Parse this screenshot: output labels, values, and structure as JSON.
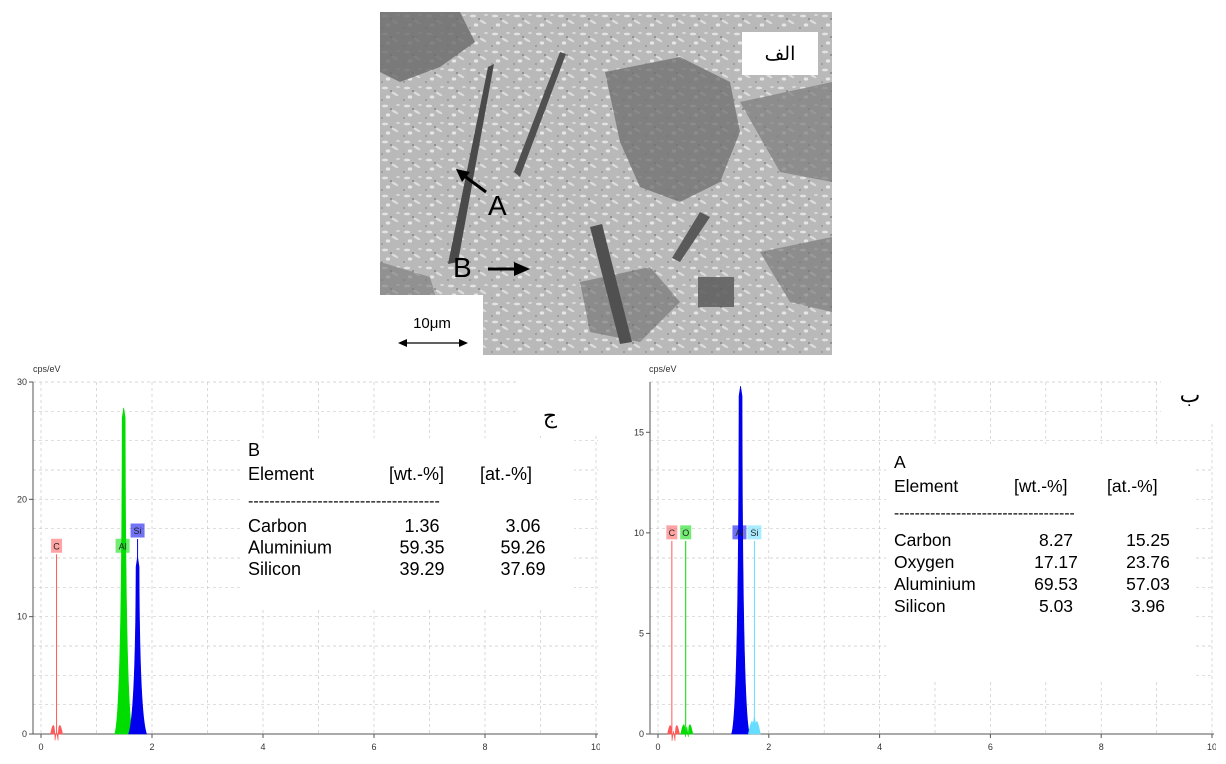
{
  "sem_image": {
    "panel_label": "الف",
    "arrow_a": "A",
    "arrow_b": "B",
    "scale_bar": "10μm"
  },
  "spectra": [
    {
      "panel_label": "ج",
      "y_unit": "cps/eV",
      "y_ticks": [
        "0",
        "10",
        "20",
        "30"
      ],
      "x_ticks": [
        "0",
        "2",
        "4",
        "6",
        "8",
        "10"
      ],
      "table_title": "B",
      "table_headers": [
        "Element",
        "[wt.-%]",
        "[at.-%]"
      ],
      "divider": "------------------------------------",
      "rows": [
        [
          "Carbon",
          "1.36",
          "3.06"
        ],
        [
          "Aluminium",
          "59.35",
          "59.26"
        ],
        [
          "Silicon",
          "39.29",
          "37.69"
        ]
      ],
      "peak_labels": [
        "C",
        "Al",
        "Si"
      ],
      "colors": {
        "C": "#ff5a5a",
        "Al": "#00dd00",
        "Si": "#0000ee"
      }
    },
    {
      "panel_label": "ب",
      "y_unit": "cps/eV",
      "y_ticks": [
        "0",
        "5",
        "10",
        "15"
      ],
      "x_ticks": [
        "0",
        "2",
        "4",
        "6",
        "8",
        "10"
      ],
      "table_title": "A",
      "table_headers": [
        "Element",
        "[wt.-%]",
        "[at.-%]"
      ],
      "divider": "-----------------------------------",
      "rows": [
        [
          "Carbon",
          "8.27",
          "15.25"
        ],
        [
          "Oxygen",
          "17.17",
          "23.76"
        ],
        [
          "Aluminium",
          "69.53",
          "57.03"
        ],
        [
          "Silicon",
          "5.03",
          "3.96"
        ]
      ],
      "peak_labels": [
        "C",
        "O",
        "Al",
        "Si"
      ],
      "colors": {
        "C": "#ff5a5a",
        "O": "#00dd00",
        "Al": "#0000ee",
        "Si": "#66ddff"
      }
    }
  ],
  "chart_data": [
    {
      "type": "area",
      "title": "",
      "ylabel": "cps/eV",
      "xlim": [
        0,
        10
      ],
      "ylim": [
        0,
        30
      ],
      "grid": true,
      "series": [
        {
          "name": "C",
          "x": [
            0.28
          ],
          "y": [
            0.3
          ]
        },
        {
          "name": "Al",
          "x": [
            1.49
          ],
          "y": [
            27.8
          ]
        },
        {
          "name": "Si",
          "x": [
            1.74
          ],
          "y": [
            15.1
          ]
        }
      ]
    },
    {
      "type": "area",
      "title": "",
      "ylabel": "cps/eV",
      "xlim": [
        0,
        10
      ],
      "ylim": [
        0,
        17.5
      ],
      "grid": true,
      "series": [
        {
          "name": "C",
          "x": [
            0.28
          ],
          "y": [
            0.15
          ]
        },
        {
          "name": "O",
          "x": [
            0.52
          ],
          "y": [
            0.35
          ]
        },
        {
          "name": "Al",
          "x": [
            1.49
          ],
          "y": [
            17.3
          ]
        },
        {
          "name": "Si",
          "x": [
            1.74
          ],
          "y": [
            0.9
          ]
        }
      ]
    }
  ]
}
